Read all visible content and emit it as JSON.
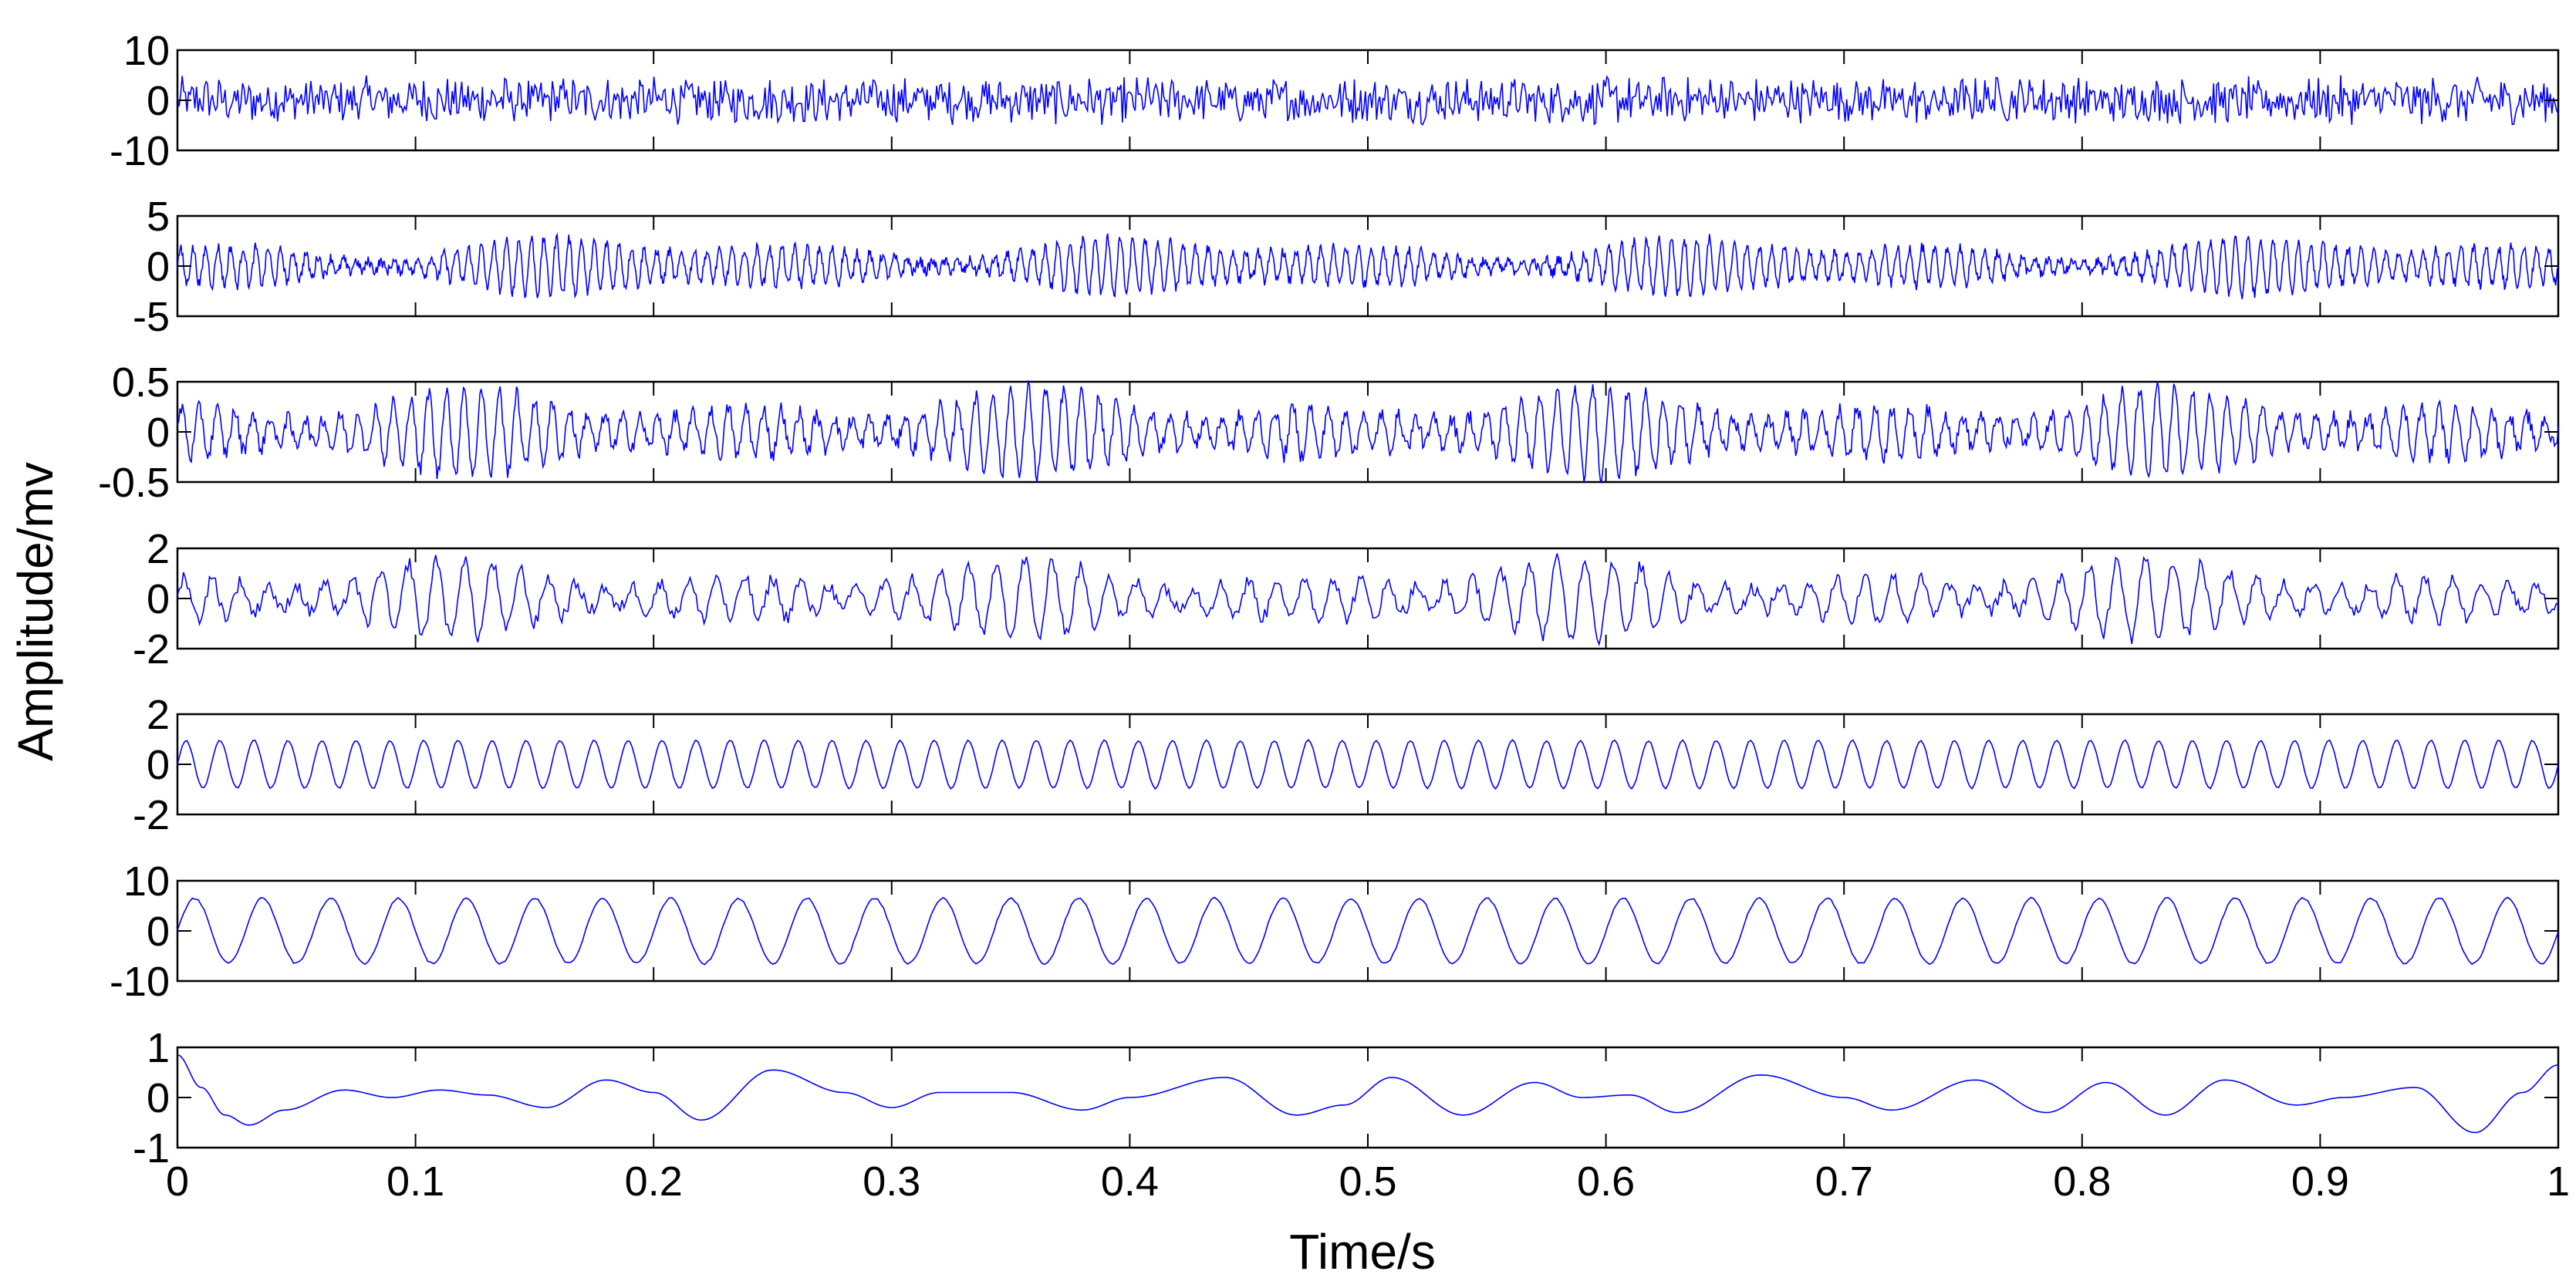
{
  "chart_data": {
    "type": "line",
    "xlabel": "Time/s",
    "ylabel": "Amplitude/mv",
    "xlim": [
      0,
      1
    ],
    "xticks": [
      0,
      0.1,
      0.2,
      0.3,
      0.4,
      0.5,
      0.6,
      0.7,
      0.8,
      0.9,
      1
    ],
    "xtick_labels": [
      "0",
      "0.1",
      "0.2",
      "0.3",
      "0.4",
      "0.5",
      "0.6",
      "0.7",
      "0.8",
      "0.9",
      "1"
    ],
    "line_color": "#0000ff",
    "grid": false,
    "legend": "none",
    "subplots": [
      {
        "ylim": [
          -10,
          10
        ],
        "yticks": [
          -10,
          0,
          10
        ],
        "ytick_labels": [
          "-10",
          "0",
          "10"
        ],
        "signal": "broadband noise",
        "amplitude": 5,
        "approx_cycles": 0
      },
      {
        "ylim": [
          -5,
          5
        ],
        "yticks": [
          -5,
          0,
          5
        ],
        "ytick_labels": [
          "-5",
          "0",
          "5"
        ],
        "signal": "high-frequency oscillation",
        "amplitude": 3,
        "approx_cycles": 190
      },
      {
        "ylim": [
          -0.5,
          0.5
        ],
        "yticks": [
          -0.5,
          0,
          0.5
        ],
        "ytick_labels": [
          "-0.5",
          "0",
          "0.5"
        ],
        "signal": "oscillation",
        "amplitude": 0.45,
        "approx_cycles": 135
      },
      {
        "ylim": [
          -2,
          2
        ],
        "yticks": [
          -2,
          0,
          2
        ],
        "ytick_labels": [
          "-2",
          "0",
          "2"
        ],
        "signal": "oscillation",
        "amplitude": 1.6,
        "approx_cycles": 85
      },
      {
        "ylim": [
          -2,
          2
        ],
        "yticks": [
          -2,
          0,
          2
        ],
        "ytick_labels": [
          "-2",
          "0",
          "2"
        ],
        "signal": "sinusoid",
        "amplitude": 0.95,
        "approx_cycles": 70
      },
      {
        "ylim": [
          -10,
          10
        ],
        "yticks": [
          -10,
          0,
          10
        ],
        "ytick_labels": [
          "-10",
          "0",
          "10"
        ],
        "signal": "sinusoid",
        "amplitude": 6.5,
        "approx_cycles": 35
      },
      {
        "ylim": [
          -1,
          1
        ],
        "yticks": [
          -1,
          0,
          1
        ],
        "ytick_labels": [
          "-1",
          "0",
          "1"
        ],
        "signal": "residual",
        "x": [
          0,
          0.01,
          0.02,
          0.03,
          0.045,
          0.07,
          0.09,
          0.11,
          0.13,
          0.155,
          0.18,
          0.2,
          0.22,
          0.25,
          0.28,
          0.3,
          0.32,
          0.35,
          0.38,
          0.4,
          0.44,
          0.47,
          0.49,
          0.51,
          0.54,
          0.57,
          0.59,
          0.61,
          0.63,
          0.665,
          0.7,
          0.72,
          0.755,
          0.785,
          0.81,
          0.835,
          0.86,
          0.89,
          0.91,
          0.94,
          0.965,
          0.985,
          1
        ],
        "y": [
          0.85,
          0.2,
          -0.35,
          -0.55,
          -0.25,
          0.15,
          0.0,
          0.15,
          0.05,
          -0.2,
          0.35,
          0.1,
          -0.45,
          0.55,
          0.1,
          -0.2,
          0.1,
          0.1,
          -0.25,
          0.0,
          0.4,
          -0.35,
          -0.15,
          0.4,
          -0.35,
          0.3,
          0.0,
          0.05,
          -0.3,
          0.45,
          0.0,
          -0.25,
          0.35,
          -0.3,
          0.3,
          -0.35,
          0.35,
          -0.15,
          0.0,
          0.2,
          -0.7,
          0.1,
          0.65
        ]
      }
    ]
  }
}
